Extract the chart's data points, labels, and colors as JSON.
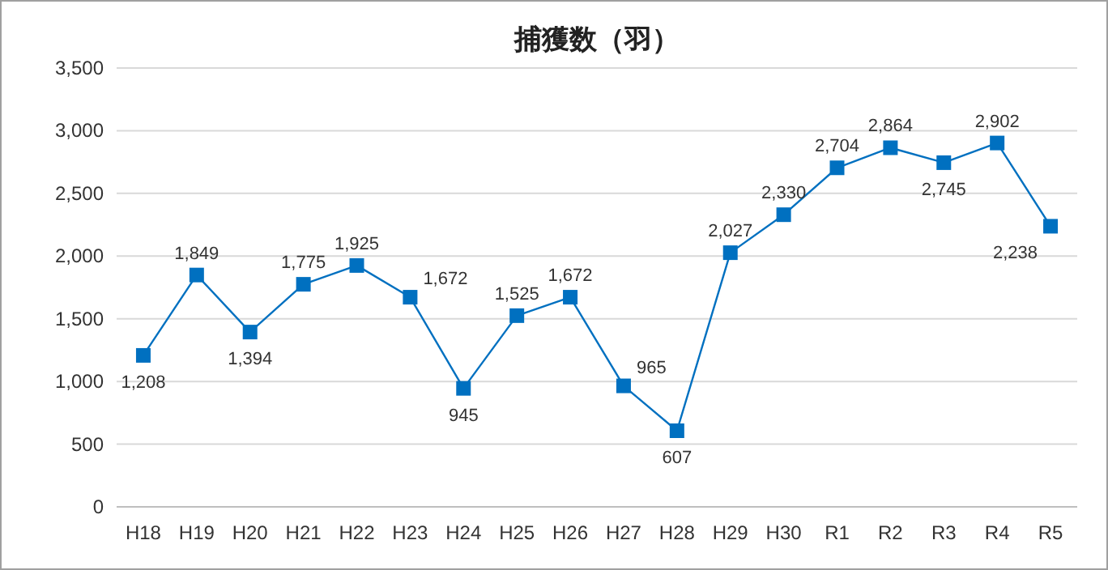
{
  "chart_data": {
    "type": "line",
    "title": "捕獲数（羽）",
    "categories": [
      "H18",
      "H19",
      "H20",
      "H21",
      "H22",
      "H23",
      "H24",
      "H25",
      "H26",
      "H27",
      "H28",
      "H29",
      "H30",
      "R1",
      "R2",
      "R3",
      "R4",
      "R5"
    ],
    "series": [
      {
        "color": "#0070c0",
        "values": [
          1208,
          1849,
          1394,
          1775,
          1925,
          1672,
          945,
          1525,
          1672,
          965,
          607,
          2027,
          2330,
          2704,
          2864,
          2745,
          2902,
          2238
        ],
        "value_labels": [
          "1,208",
          "1,849",
          "1,394",
          "1,775",
          "1,925",
          "1,672",
          "945",
          "1,525",
          "1,672",
          "965",
          "607",
          "2,027",
          "2,330",
          "2,704",
          "2,864",
          "2,745",
          "2,902",
          "2,238"
        ]
      }
    ],
    "ylim": [
      0,
      3500
    ],
    "yticks": [
      {
        "value": 0,
        "label": "0"
      },
      {
        "value": 500,
        "label": "500"
      },
      {
        "value": 1000,
        "label": "1,000"
      },
      {
        "value": 1500,
        "label": "1,500"
      },
      {
        "value": 2000,
        "label": "2,000"
      },
      {
        "value": 2500,
        "label": "2,500"
      },
      {
        "value": 3000,
        "label": "3,000"
      },
      {
        "value": 3500,
        "label": "3,500"
      }
    ],
    "grid": "y",
    "marker": "square",
    "line_style": "solid"
  }
}
